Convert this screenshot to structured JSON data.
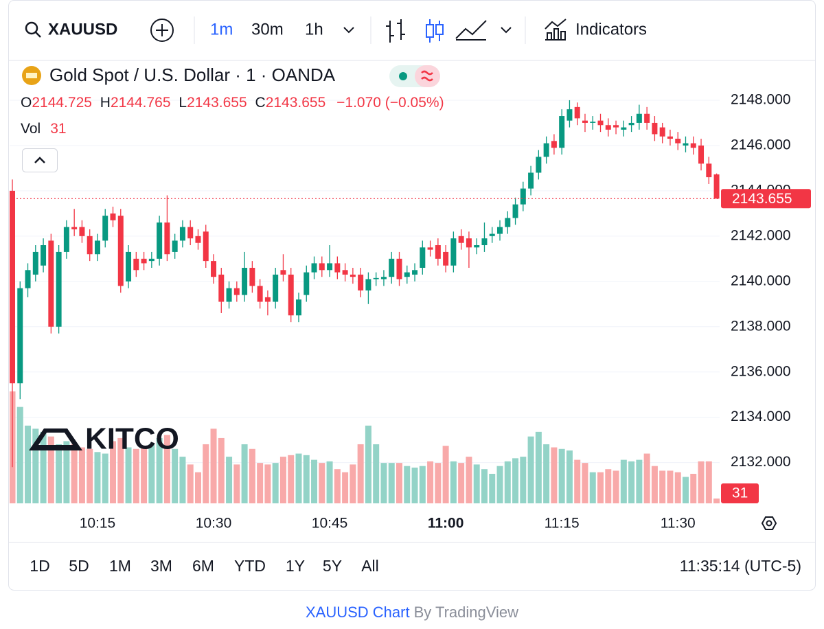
{
  "toolbar": {
    "symbol": "XAUUSD",
    "intervals": [
      "1m",
      "30m",
      "1h"
    ],
    "indicators": "Indicators"
  },
  "legend": {
    "title": "Gold Spot / U.S. Dollar · 1 · OANDA",
    "open_label": "O",
    "high_label": "H",
    "low_label": "L",
    "close_label": "C",
    "change": "−1.070 (−0.05%)",
    "volume_label": "Vol"
  },
  "watermark": "KITCO",
  "ranges": [
    "1D",
    "5D",
    "1M",
    "3M",
    "6M",
    "YTD",
    "1Y",
    "5Y",
    "All"
  ],
  "clock": "11:35:14 (UTC-5)",
  "footer": {
    "link": "XAUUSD Chart",
    "by": "By TradingView"
  },
  "chart_data": {
    "type": "candlestick",
    "up_color": "#089981",
    "down_color": "#f23645",
    "volume_up_color": "#93d3c7",
    "volume_down_color": "#f8a9a9",
    "categories": [
      null,
      null,
      null,
      null,
      null,
      null,
      null,
      null,
      null,
      null,
      null,
      "10:15",
      null,
      null,
      null,
      null,
      null,
      null,
      null,
      null,
      null,
      null,
      null,
      null,
      null,
      null,
      "10:30",
      null,
      null,
      null,
      null,
      null,
      null,
      null,
      null,
      null,
      null,
      null,
      null,
      null,
      null,
      "10:45",
      null,
      null,
      null,
      null,
      null,
      null,
      null,
      null,
      null,
      null,
      null,
      null,
      null,
      null,
      "11:00",
      null,
      null,
      null,
      null,
      null,
      null,
      null,
      null,
      null,
      null,
      null,
      null,
      null,
      null,
      "11:15",
      null,
      null,
      null,
      null,
      null,
      null,
      null,
      null,
      null,
      null,
      null,
      null,
      null,
      null,
      "11:30",
      null,
      null,
      null,
      null,
      null
    ],
    "open": [
      2144.0,
      2135.5,
      2139.7,
      2140.3,
      2140.7,
      2141.8,
      2138.0,
      2141.3,
      2142.4,
      2142.4,
      2142.0,
      2141.2,
      2141.8,
      2143.0,
      2142.9,
      2140.0,
      2141.0,
      2141.0,
      2140.9,
      2141.0,
      2142.6,
      2141.3,
      2141.8,
      2142.4,
      2142.0,
      2142.2,
      2140.9,
      2140.3,
      2139.1,
      2139.7,
      2139.4,
      2140.6,
      2139.8,
      2139.3,
      2139.1,
      2140.5,
      2140.3,
      2138.5,
      2139.4,
      2140.4,
      2140.8,
      2140.5,
      2140.8,
      2140.5,
      2140.3,
      2140.3,
      2139.6,
      2140.1,
      2140.1,
      2140.2,
      2141.0,
      2140.2,
      2140.3,
      2140.6,
      2141.5,
      2141.6,
      2141.3,
      2140.7,
      2142.0,
      2141.9,
      2141.5,
      2141.6,
      2142.0,
      2142.1,
      2142.4,
      2142.8,
      2143.4,
      2144.1,
      2144.8,
      2145.5,
      2146.2,
      2145.9,
      2147.1,
      2147.7,
      2147.1,
      2147.0,
      2147.1,
      2146.9,
      2146.9,
      2146.7,
      2146.9,
      2147.0,
      2147.4,
      2147.0,
      2146.8,
      2146.4,
      2146.3,
      2146.0,
      2146.1,
      2146.0,
      2145.2,
      2144.725
    ],
    "high": [
      2144.5,
      2140.0,
      2140.8,
      2141.6,
      2141.9,
      2142.1,
      2141.6,
      2142.7,
      2143.2,
      2142.7,
      2142.3,
      2142.1,
      2143.2,
      2143.3,
      2143.2,
      2141.6,
      2141.3,
      2141.3,
      2141.3,
      2142.9,
      2143.8,
      2142.1,
      2142.7,
      2142.7,
      2142.3,
      2142.5,
      2141.2,
      2140.6,
      2140.0,
      2140.0,
      2141.3,
      2140.9,
      2140.1,
      2139.6,
      2140.6,
      2141.2,
      2140.6,
      2139.5,
      2140.7,
      2141.1,
      2141.1,
      2141.6,
      2141.1,
      2140.8,
      2140.6,
      2140.6,
      2140.4,
      2140.4,
      2140.5,
      2141.3,
      2141.3,
      2140.7,
      2140.8,
      2141.8,
      2141.8,
      2141.9,
      2141.6,
      2142.2,
      2142.3,
      2142.2,
      2141.9,
      2142.6,
      2142.4,
      2142.7,
      2143.1,
      2143.7,
      2144.4,
      2145.1,
      2145.8,
      2146.4,
      2146.5,
      2147.6,
      2148.0,
      2147.9,
      2147.4,
      2147.3,
      2147.4,
      2147.2,
      2147.1,
      2147.1,
      2147.3,
      2147.8,
      2147.7,
      2147.3,
      2147.0,
      2146.7,
      2146.6,
      2146.4,
      2146.4,
      2146.3,
      2145.5,
      2144.765
    ],
    "low": [
      2131.8,
      2134.8,
      2139.3,
      2140.0,
      2140.4,
      2137.7,
      2137.7,
      2141.0,
      2142.0,
      2141.7,
      2140.9,
      2140.9,
      2141.5,
      2142.4,
      2139.5,
      2139.7,
      2140.2,
      2140.5,
      2140.6,
      2140.7,
      2140.9,
      2141.0,
      2141.5,
      2141.6,
      2141.4,
      2140.6,
      2139.9,
      2138.6,
      2138.8,
      2139.1,
      2139.1,
      2139.5,
      2138.8,
      2138.5,
      2138.8,
      2140.0,
      2138.2,
      2138.2,
      2139.1,
      2140.1,
      2140.2,
      2140.2,
      2140.1,
      2140.0,
      2139.9,
      2139.3,
      2139.0,
      2139.8,
      2139.8,
      2139.9,
      2139.8,
      2139.9,
      2140.0,
      2140.3,
      2141.1,
      2140.7,
      2140.4,
      2140.4,
      2141.4,
      2140.6,
      2141.2,
      2141.3,
      2141.7,
      2141.8,
      2142.1,
      2142.5,
      2143.1,
      2143.8,
      2144.5,
      2145.2,
      2145.6,
      2145.6,
      2146.8,
      2146.9,
      2146.6,
      2146.7,
      2146.6,
      2146.4,
      2146.5,
      2146.4,
      2146.6,
      2146.7,
      2146.7,
      2146.2,
      2146.1,
      2146.0,
      2145.8,
      2145.7,
      2145.6,
      2144.9,
      2144.3,
      2143.655
    ],
    "close": [
      2135.5,
      2139.7,
      2140.5,
      2141.3,
      2141.6,
      2138.0,
      2141.3,
      2142.4,
      2142.3,
      2142.0,
      2141.2,
      2141.8,
      2142.9,
      2142.7,
      2139.8,
      2141.3,
      2140.5,
      2140.8,
      2141.0,
      2142.6,
      2141.2,
      2141.8,
      2142.4,
      2141.9,
      2141.7,
      2140.9,
      2140.2,
      2139.1,
      2139.7,
      2139.4,
      2140.6,
      2139.8,
      2139.1,
      2139.1,
      2140.3,
      2140.3,
      2138.5,
      2139.2,
      2140.4,
      2140.8,
      2140.5,
      2140.8,
      2140.4,
      2140.3,
      2140.2,
      2139.6,
      2140.1,
      2140.15,
      2140.2,
      2141.0,
      2140.1,
      2140.4,
      2140.5,
      2141.5,
      2141.4,
      2141.0,
      2140.7,
      2141.9,
      2141.7,
      2141.5,
      2141.6,
      2141.9,
      2142.1,
      2142.4,
      2142.8,
      2143.4,
      2144.1,
      2144.8,
      2145.5,
      2146.1,
      2145.9,
      2147.3,
      2147.6,
      2147.2,
      2147.0,
      2147.05,
      2146.9,
      2146.7,
      2146.8,
      2146.8,
      2147.0,
      2147.4,
      2147.0,
      2146.5,
      2146.4,
      2146.3,
      2146.1,
      2146.1,
      2145.9,
      2145.2,
      2144.6,
      2143.655
    ],
    "volume": [
      720,
      620,
      500,
      480,
      460,
      430,
      380,
      400,
      380,
      360,
      350,
      330,
      320,
      400,
      420,
      360,
      350,
      370,
      380,
      420,
      440,
      350,
      300,
      250,
      200,
      380,
      480,
      420,
      300,
      250,
      380,
      350,
      260,
      250,
      260,
      300,
      310,
      320,
      310,
      280,
      260,
      270,
      220,
      200,
      250,
      380,
      500,
      380,
      260,
      260,
      260,
      240,
      230,
      240,
      270,
      260,
      370,
      270,
      260,
      300,
      250,
      220,
      190,
      240,
      270,
      290,
      300,
      430,
      460,
      380,
      360,
      350,
      340,
      280,
      260,
      200,
      200,
      220,
      210,
      280,
      270,
      280,
      320,
      240,
      210,
      210,
      200,
      170,
      190,
      270,
      270,
      31
    ],
    "ylim": [
      2130.2,
      2150
    ],
    "yticks": [
      {
        "value": 2132,
        "label": "2132.000"
      },
      {
        "value": 2134,
        "label": "2134.000"
      },
      {
        "value": 2136,
        "label": "2136.000"
      },
      {
        "value": 2138,
        "label": "2138.000"
      },
      {
        "value": 2140,
        "label": "2140.000"
      },
      {
        "value": 2142,
        "label": "2142.000"
      },
      {
        "value": 2144,
        "label": "2144.000"
      },
      {
        "value": 2146,
        "label": "2146.000"
      },
      {
        "value": 2148,
        "label": "2148.000"
      }
    ],
    "grid": true
  }
}
